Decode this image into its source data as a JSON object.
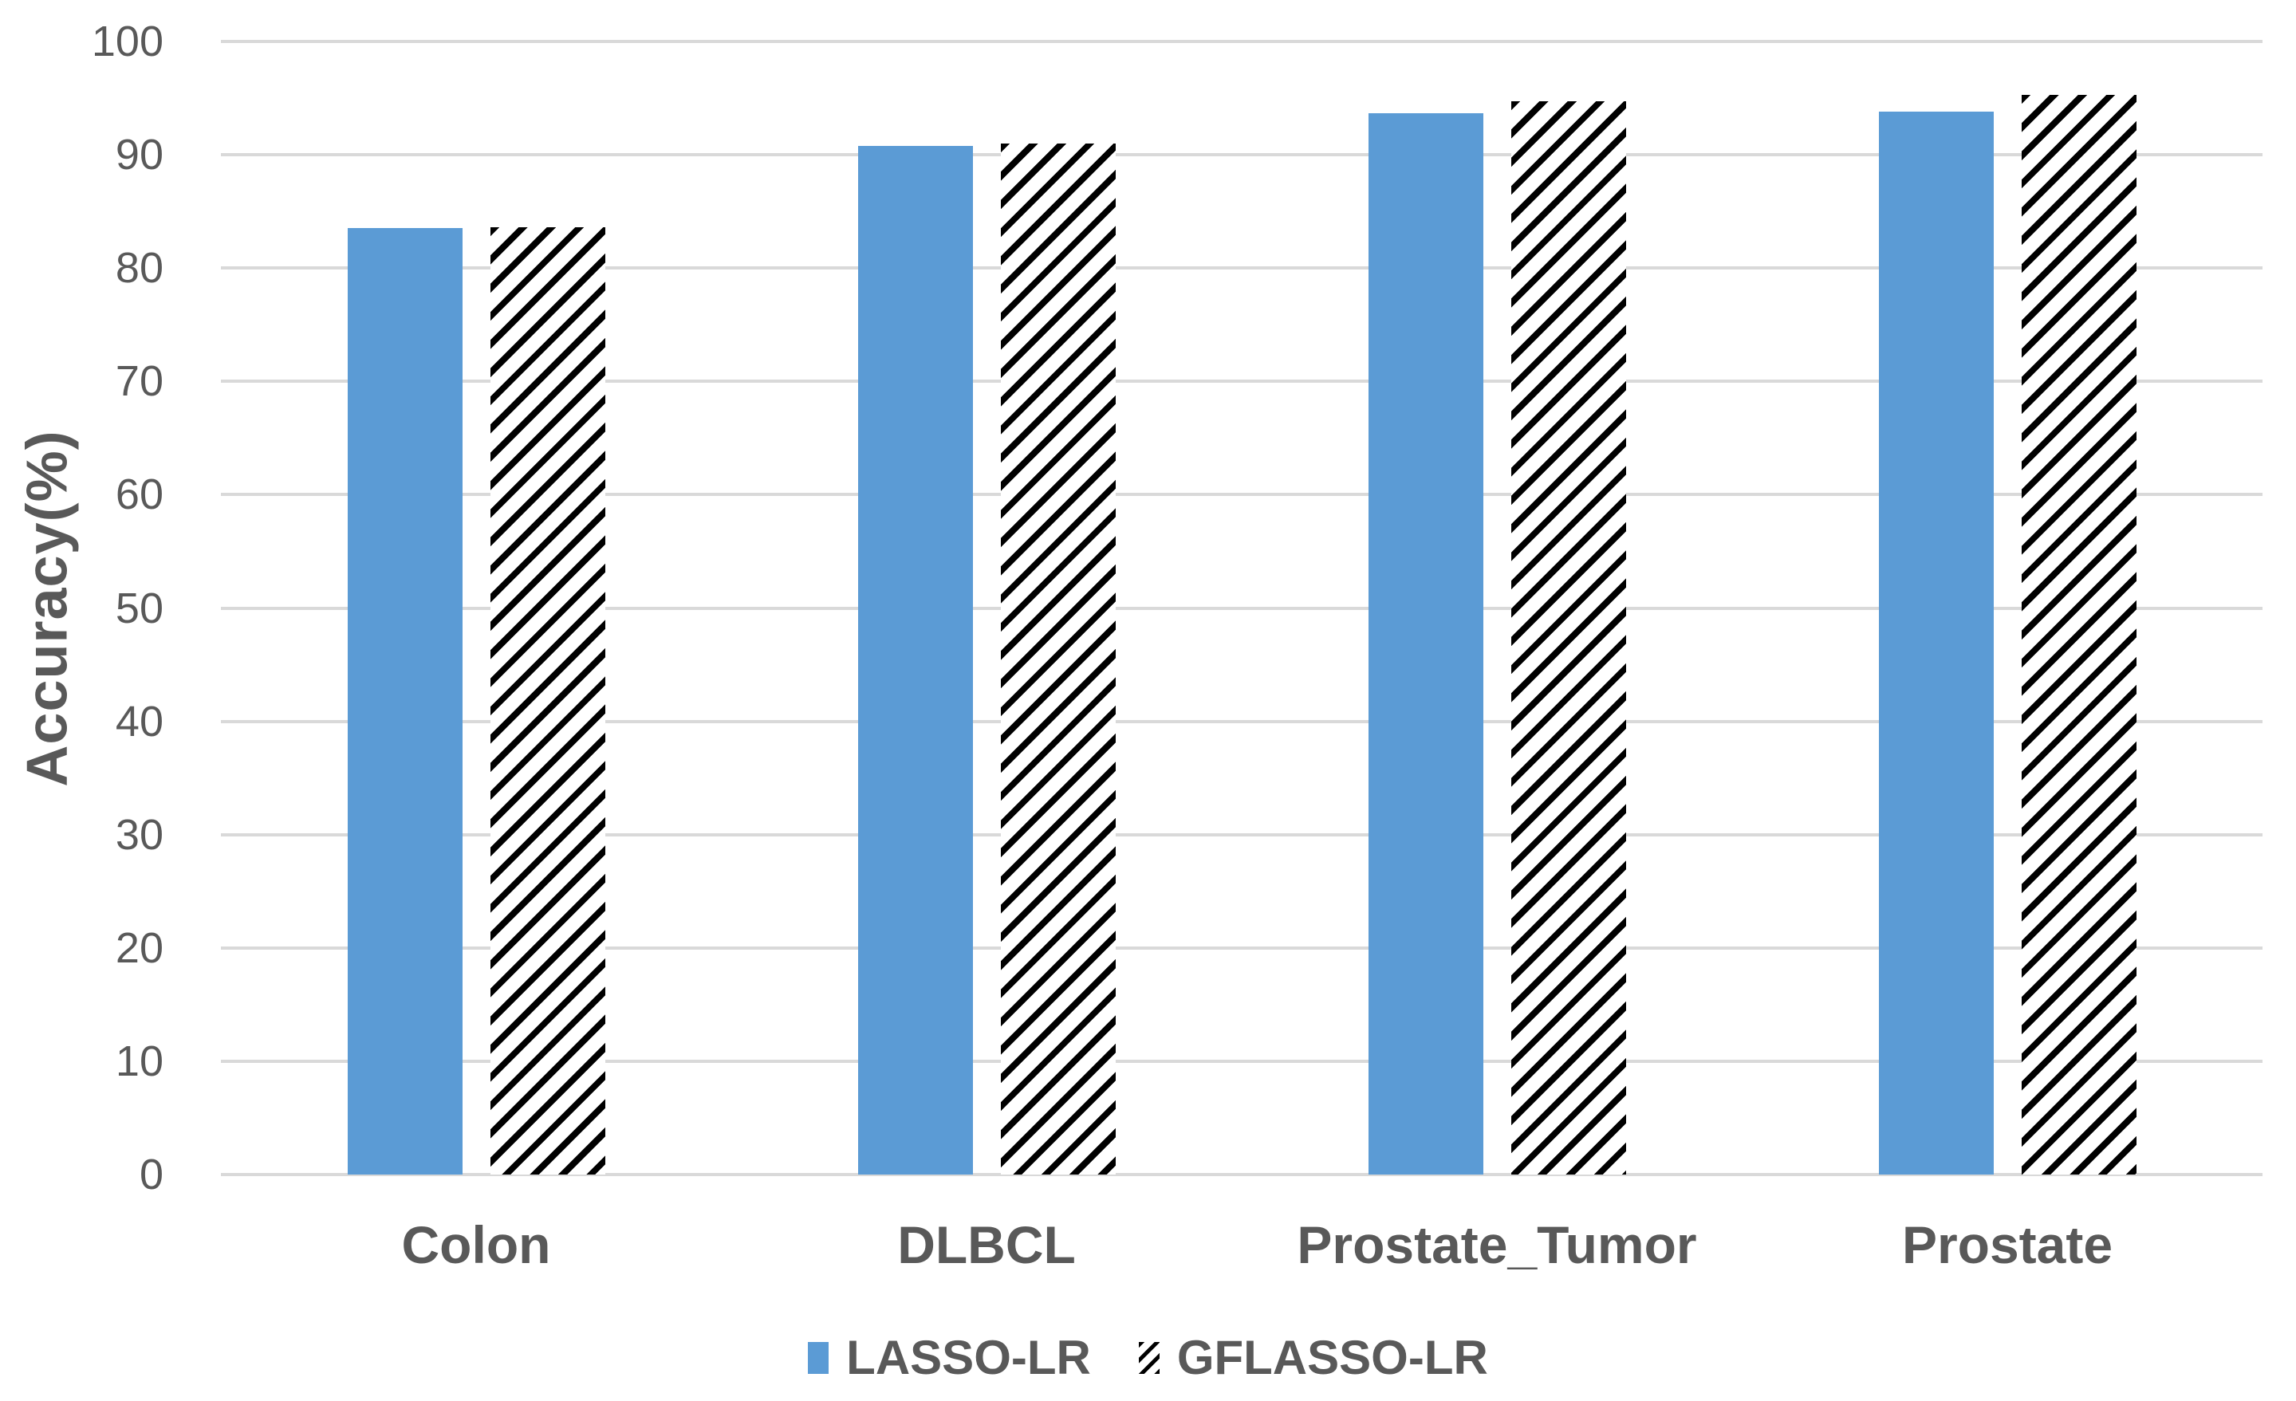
{
  "chart_data": {
    "type": "bar",
    "title": "",
    "xlabel": "",
    "ylabel": "Accuracy(%)",
    "ylim": [
      0,
      100
    ],
    "ytick_step": 10,
    "yticks": [
      0,
      10,
      20,
      30,
      40,
      50,
      60,
      70,
      80,
      90,
      100
    ],
    "grid": true,
    "legend_position": "bottom-center",
    "categories": [
      "Colon",
      "DLBCL",
      "Prostate_Tumor",
      "Prostate"
    ],
    "series": [
      {
        "name": "LASSO-LR",
        "style": "solid",
        "color": "#5B9BD5",
        "values": [
          83.5,
          90.8,
          93.7,
          93.8
        ]
      },
      {
        "name": "GFLASSO-LR",
        "style": "hatched",
        "color": "#000000",
        "values": [
          83.6,
          91.0,
          94.7,
          95.3
        ]
      }
    ]
  },
  "colors": {
    "bar_blue": "#5B9BD5",
    "hatch_black": "#000000",
    "gridline": "#D9D9D9",
    "text": "#595959",
    "background": "#ffffff"
  }
}
